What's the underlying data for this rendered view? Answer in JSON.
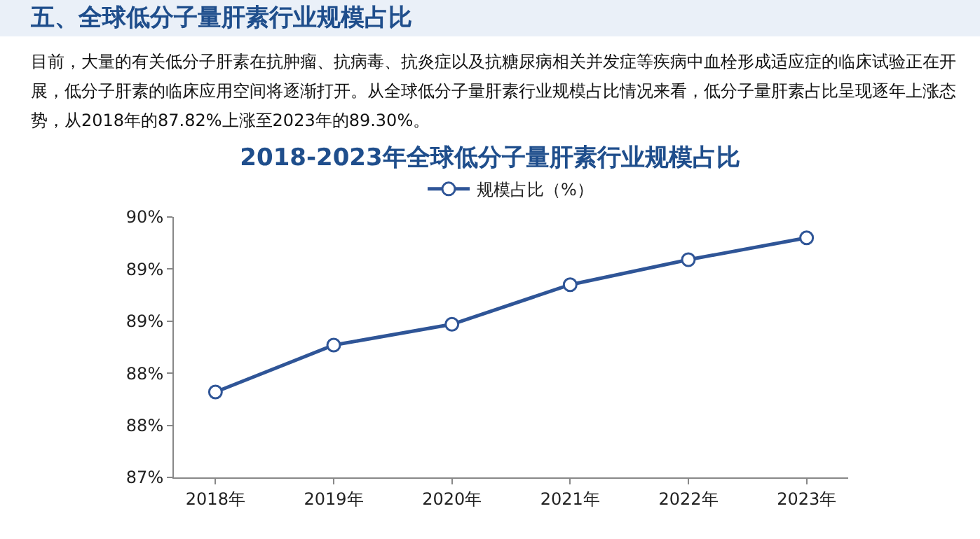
{
  "chart_data": {
    "type": "line",
    "title": "2018-2023年全球低分子量肝素行业规模占比",
    "annotations": [
      "五、全球低分子量肝素行业规模占比",
      "目前，大量的有关低分子肝素在抗肿瘤、抗病毒、抗炎症以及抗糖尿病相关并发症等疾病中血栓形成适应症的临床试验正在开展，低分子肝素的临床应用空间将逐渐打开。从全球低分子量肝素行业规模占比情况来看，低分子量肝素占比呈现逐年上涨态势，从2018年的87.82%上涨至2023年的89.30%。"
    ],
    "categories": [
      "2018年",
      "2019年",
      "2020年",
      "2021年",
      "2022年",
      "2023年"
    ],
    "series": [
      {
        "name": "规模占比（%）",
        "color": "#2f5597",
        "values": [
          87.82,
          88.27,
          88.47,
          88.85,
          89.09,
          89.3
        ]
      }
    ],
    "ylim": [
      87,
      89.5
    ],
    "yticks": [
      {
        "value": 87,
        "label": "87%"
      },
      {
        "value": 87.5,
        "label": "88%"
      },
      {
        "value": 88,
        "label": "88%"
      },
      {
        "value": 88.5,
        "label": "89%"
      },
      {
        "value": 89,
        "label": "89%"
      },
      {
        "value": 89.5,
        "label": "90%"
      }
    ],
    "grid": false,
    "legend": "top",
    "marker": "circle",
    "line_style": "solid"
  }
}
